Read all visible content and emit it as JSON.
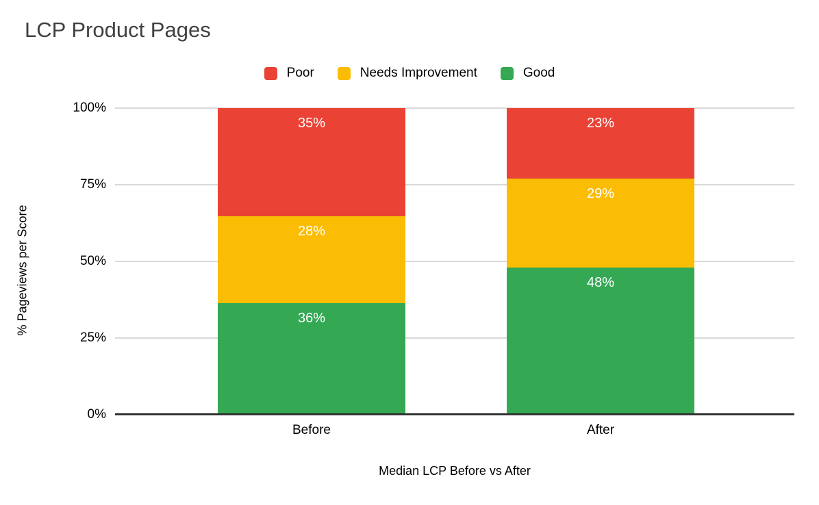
{
  "chart": {
    "title": "LCP Product Pages",
    "xlabel": "Median LCP Before vs After",
    "ylabel": "% Pageviews per Score"
  },
  "legend": {
    "items": [
      {
        "label": "Poor",
        "color": "#EA4335"
      },
      {
        "label": "Needs Improvement",
        "color": "#FBBC04"
      },
      {
        "label": "Good",
        "color": "#34A853"
      }
    ]
  },
  "colors": {
    "poor": "#EA4335",
    "needs_improvement": "#FBBC04",
    "good": "#34A853",
    "gridline": "#D9D9D9",
    "axis_line": "#333333",
    "title_text": "#404040",
    "segment_label_text": "#FFFFFF"
  },
  "chart_data": {
    "type": "bar",
    "stacked": true,
    "stacked_to_100": true,
    "title": "LCP Product Pages",
    "xlabel": "Median LCP Before vs After",
    "ylabel": "% Pageviews per Score",
    "categories": [
      "Before",
      "After"
    ],
    "series": [
      {
        "name": "Poor",
        "color": "#EA4335",
        "values": [
          35,
          23
        ]
      },
      {
        "name": "Needs Improvement",
        "color": "#FBBC04",
        "values": [
          28,
          29
        ]
      },
      {
        "name": "Good",
        "color": "#34A853",
        "values": [
          36,
          48
        ]
      }
    ],
    "value_suffix": "%",
    "y_ticks": [
      "100%",
      "75%",
      "50%",
      "25%",
      "0%"
    ],
    "ylim": [
      0,
      100
    ],
    "grid": true,
    "legend_position": "top",
    "data_labels": "inside-top"
  }
}
